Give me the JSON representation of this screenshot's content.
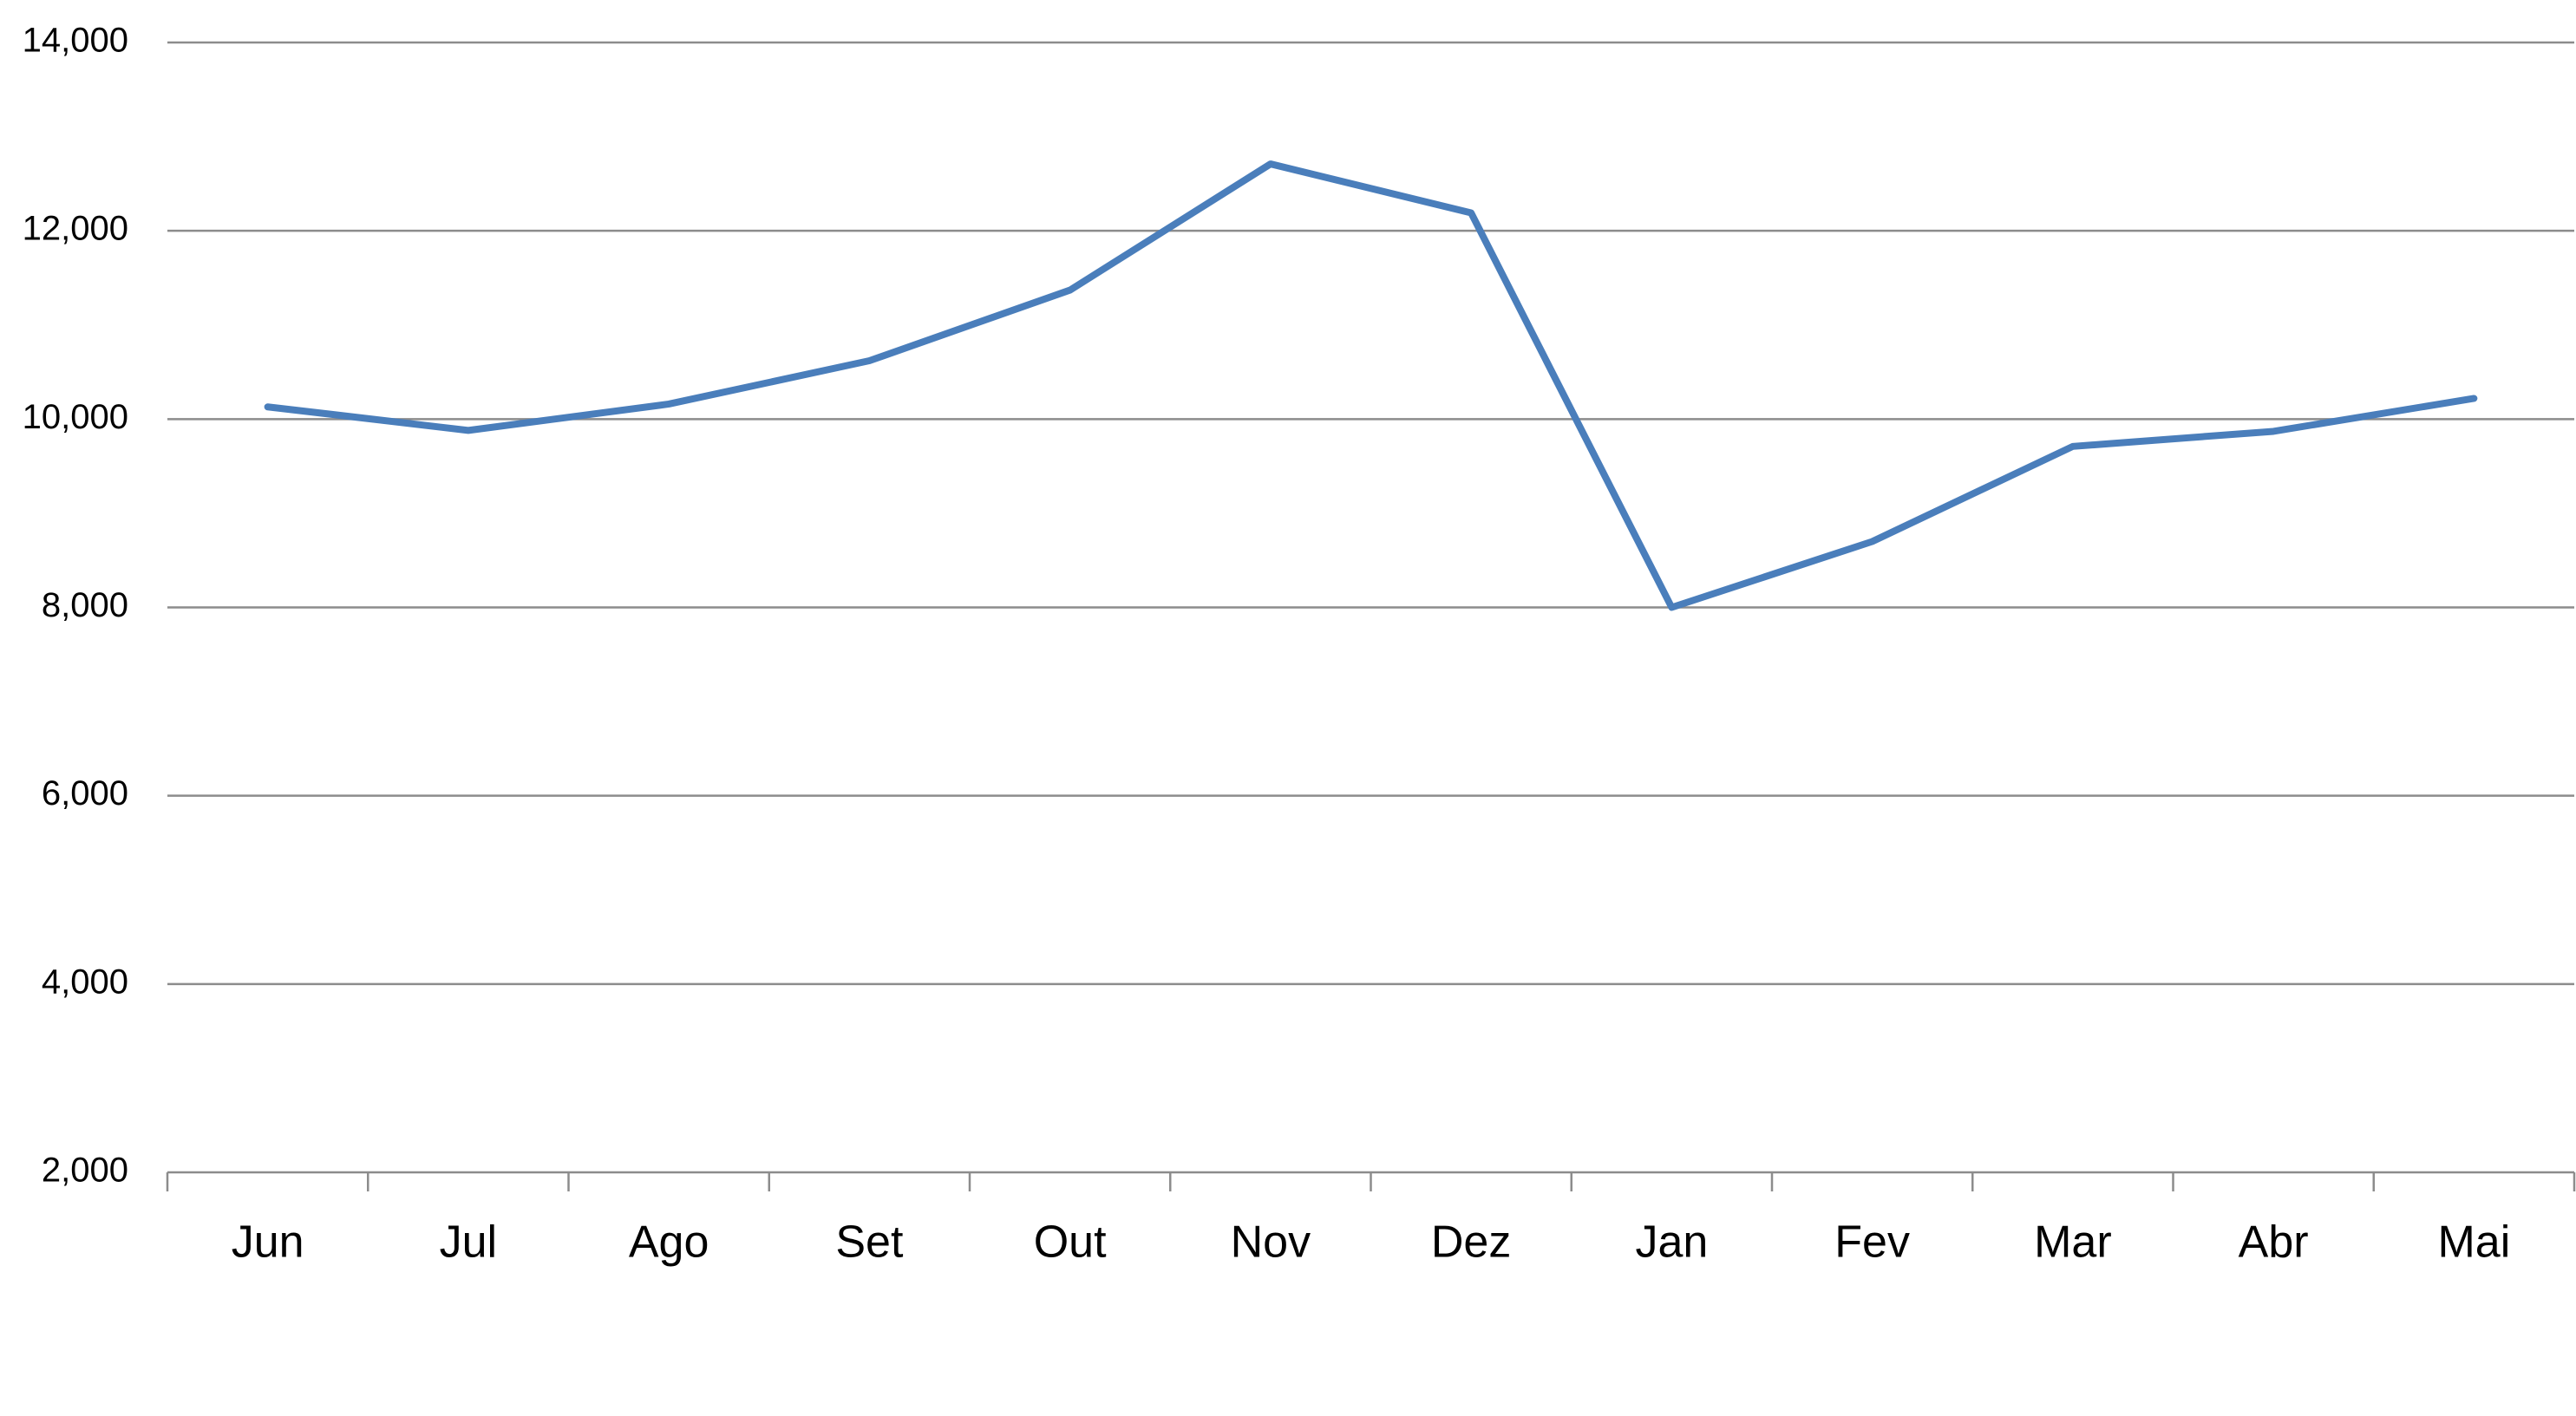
{
  "chart_data": {
    "type": "line",
    "categories": [
      "Jun",
      "Jul",
      "Ago",
      "Set",
      "Out",
      "Nov",
      "Dez",
      "Jan",
      "Fev",
      "Mar",
      "Abr",
      "Mai"
    ],
    "series": [
      {
        "color": "#4a7ebb",
        "values": [
          10130,
          9880,
          10160,
          10620,
          11370,
          12710,
          12190,
          8000,
          8700,
          9710,
          9870,
          10220
        ]
      }
    ],
    "ylim": [
      2000,
      14000
    ],
    "yticks": [
      {
        "value": 2000,
        "label": "2,000"
      },
      {
        "value": 4000,
        "label": "4,000"
      },
      {
        "value": 6000,
        "label": "6,000"
      },
      {
        "value": 8000,
        "label": "8,000"
      },
      {
        "value": 10000,
        "label": "10,000"
      },
      {
        "value": 12000,
        "label": "12,000"
      },
      {
        "value": 14000,
        "label": "14,000"
      }
    ],
    "grid": true
  }
}
